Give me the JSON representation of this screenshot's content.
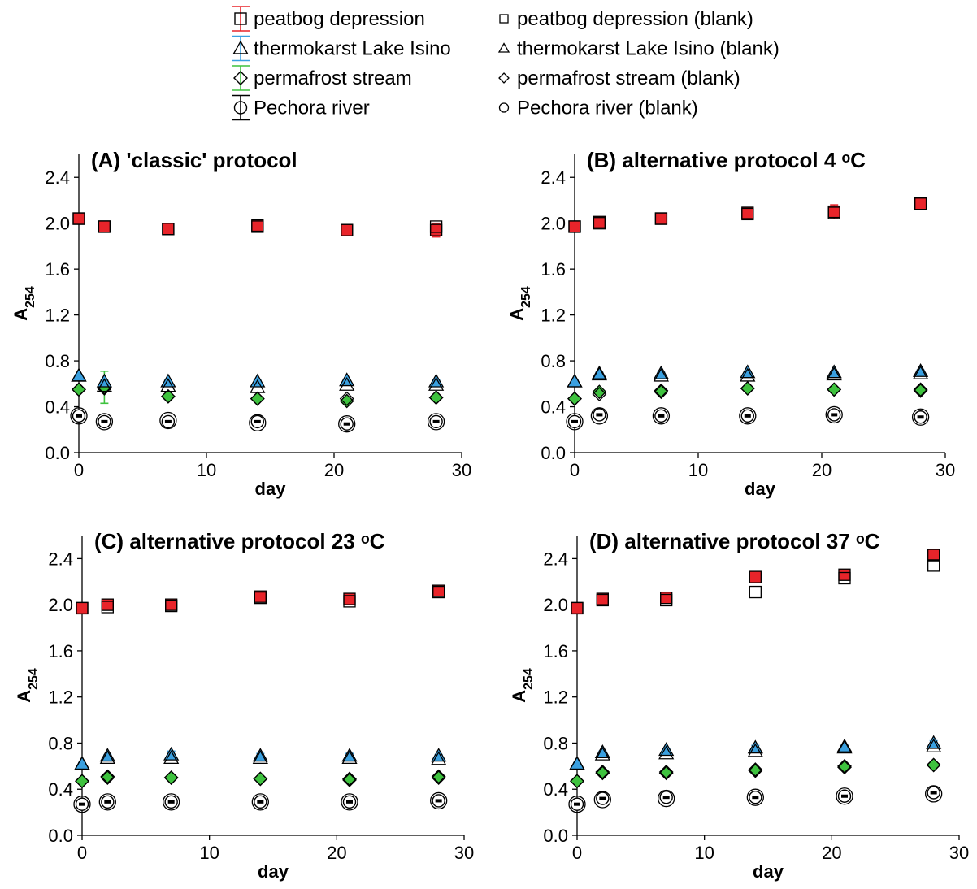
{
  "legend": {
    "items": [
      {
        "key": "peat",
        "label": "peatbog depression",
        "color": "#e8242a",
        "marker": "square"
      },
      {
        "key": "lake",
        "label": "thermokarst Lake Isino",
        "color": "#3aa0e0",
        "marker": "triangle"
      },
      {
        "key": "stream",
        "label": "permafrost stream",
        "color": "#3ec23e",
        "marker": "diamond"
      },
      {
        "key": "river",
        "label": "Pechora river",
        "color": "#000000",
        "marker": "circle"
      }
    ],
    "blank_items": [
      {
        "key": "peat",
        "label": "peatbog depression (blank)",
        "marker": "square"
      },
      {
        "key": "lake",
        "label": "thermokarst Lake Isino (blank)",
        "marker": "triangle"
      },
      {
        "key": "stream",
        "label": "permafrost stream (blank)",
        "marker": "diamond"
      },
      {
        "key": "river",
        "label": "Pechora river (blank)",
        "marker": "circle"
      }
    ]
  },
  "chart_data": [
    {
      "type": "scatter",
      "title": "(A) 'classic' protocol",
      "xlabel": "day",
      "ylabel": "A254",
      "xlim": [
        0,
        30
      ],
      "ylim": [
        0.0,
        2.6
      ],
      "xticks": [
        "0",
        "10",
        "20",
        "30"
      ],
      "yticks": [
        "0.0",
        "0.4",
        "0.8",
        "1.2",
        "1.6",
        "2.0",
        "2.4"
      ],
      "x": [
        0,
        2,
        7,
        14,
        21,
        28
      ],
      "series": [
        {
          "key": "peat",
          "name": "peatbog depression",
          "values": [
            2.04,
            1.97,
            1.95,
            1.98,
            1.94,
            1.94
          ],
          "errors": [
            0.01,
            0.02,
            0.02,
            0.02,
            0.02,
            0.06
          ]
        },
        {
          "key": "lake",
          "name": "thermokarst Lake Isino",
          "values": [
            0.67,
            0.62,
            0.62,
            0.62,
            0.63,
            0.62
          ],
          "errors": [
            0.01,
            0.01,
            0.01,
            0.01,
            0.01,
            0.01
          ]
        },
        {
          "key": "stream",
          "name": "permafrost stream",
          "values": [
            0.55,
            0.57,
            0.49,
            0.47,
            0.45,
            0.48
          ],
          "errors": [
            0.01,
            0.14,
            0.01,
            0.01,
            0.01,
            0.01
          ]
        },
        {
          "key": "river",
          "name": "Pechora river",
          "values": [
            0.32,
            0.27,
            0.27,
            0.27,
            0.25,
            0.27
          ],
          "errors": [
            0.01,
            0.01,
            0.01,
            0.01,
            0.01,
            0.01
          ]
        }
      ],
      "blank_series": [
        {
          "key": "peat",
          "name": "peatbog depression (blank)",
          "values": [
            2.04,
            1.97,
            1.95,
            1.97,
            1.94,
            1.97
          ]
        },
        {
          "key": "lake",
          "name": "thermokarst Lake Isino (blank)",
          "values": [
            0.67,
            0.58,
            0.58,
            0.57,
            0.59,
            0.59
          ]
        },
        {
          "key": "stream",
          "name": "permafrost stream (blank)",
          "values": [
            0.55,
            0.56,
            0.49,
            0.47,
            0.47,
            0.48
          ]
        },
        {
          "key": "river",
          "name": "Pechora river (blank)",
          "values": [
            0.32,
            0.27,
            0.28,
            0.26,
            0.25,
            0.27
          ]
        }
      ]
    },
    {
      "type": "scatter",
      "title": "(B) alternative protocol 4 ᵒC",
      "xlabel": "day",
      "ylabel": "A254",
      "xlim": [
        0,
        30
      ],
      "ylim": [
        0.0,
        2.6
      ],
      "xticks": [
        "0",
        "10",
        "20",
        "30"
      ],
      "yticks": [
        "0.0",
        "0.4",
        "0.8",
        "1.2",
        "1.6",
        "2.0",
        "2.4"
      ],
      "x": [
        0,
        2,
        7,
        14,
        21,
        28
      ],
      "series": [
        {
          "key": "peat",
          "name": "peatbog depression",
          "values": [
            1.97,
            2.01,
            2.04,
            2.09,
            2.1,
            2.17
          ],
          "errors": [
            0.01,
            0.03,
            0.02,
            0.02,
            0.06,
            0.03
          ]
        },
        {
          "key": "lake",
          "name": "thermokarst Lake Isino",
          "values": [
            0.62,
            0.69,
            0.69,
            0.7,
            0.7,
            0.71
          ],
          "errors": [
            0.01,
            0.01,
            0.01,
            0.01,
            0.01,
            0.01
          ]
        },
        {
          "key": "stream",
          "name": "permafrost stream",
          "values": [
            0.47,
            0.53,
            0.54,
            0.56,
            0.55,
            0.55
          ],
          "errors": [
            0.01,
            0.01,
            0.01,
            0.01,
            0.01,
            0.01
          ]
        },
        {
          "key": "river",
          "name": "Pechora river",
          "values": [
            0.27,
            0.33,
            0.32,
            0.32,
            0.33,
            0.31
          ],
          "errors": [
            0.01,
            0.01,
            0.01,
            0.01,
            0.01,
            0.01
          ]
        }
      ],
      "blank_series": [
        {
          "key": "peat",
          "name": "peatbog depression (blank)",
          "values": [
            1.97,
            2.0,
            2.04,
            2.08,
            2.09,
            2.17
          ]
        },
        {
          "key": "lake",
          "name": "thermokarst Lake Isino (blank)",
          "values": [
            0.62,
            0.68,
            0.67,
            0.67,
            0.68,
            0.69
          ]
        },
        {
          "key": "stream",
          "name": "permafrost stream (blank)",
          "values": [
            0.47,
            0.51,
            0.53,
            0.56,
            0.55,
            0.54
          ]
        },
        {
          "key": "river",
          "name": "Pechora river (blank)",
          "values": [
            0.27,
            0.32,
            0.32,
            0.32,
            0.33,
            0.31
          ]
        }
      ]
    },
    {
      "type": "scatter",
      "title": "(C) alternative protocol 23 ᵒC",
      "xlabel": "day",
      "ylabel": "A254",
      "xlim": [
        0,
        30
      ],
      "ylim": [
        0.0,
        2.6
      ],
      "xticks": [
        "0",
        "10",
        "20",
        "30"
      ],
      "yticks": [
        "0.0",
        "0.4",
        "0.8",
        "1.2",
        "1.6",
        "2.0",
        "2.4"
      ],
      "x": [
        0,
        2,
        7,
        14,
        21,
        28
      ],
      "series": [
        {
          "key": "peat",
          "name": "peatbog depression",
          "values": [
            1.97,
            2.0,
            2.0,
            2.07,
            2.05,
            2.12
          ],
          "errors": [
            0.01,
            0.03,
            0.04,
            0.02,
            0.03,
            0.03
          ]
        },
        {
          "key": "lake",
          "name": "thermokarst Lake Isino",
          "values": [
            0.62,
            0.69,
            0.7,
            0.69,
            0.69,
            0.69
          ],
          "errors": [
            0.01,
            0.01,
            0.03,
            0.02,
            0.02,
            0.01
          ]
        },
        {
          "key": "stream",
          "name": "permafrost stream",
          "values": [
            0.47,
            0.51,
            0.5,
            0.49,
            0.49,
            0.51
          ],
          "errors": [
            0.01,
            0.01,
            0.01,
            0.01,
            0.01,
            0.01
          ]
        },
        {
          "key": "river",
          "name": "Pechora river",
          "values": [
            0.27,
            0.29,
            0.29,
            0.29,
            0.29,
            0.3
          ],
          "errors": [
            0.01,
            0.01,
            0.01,
            0.01,
            0.01,
            0.01
          ]
        }
      ],
      "blank_series": [
        {
          "key": "peat",
          "name": "peatbog depression (blank)",
          "values": [
            1.97,
            1.98,
            1.99,
            2.06,
            2.03,
            2.11
          ]
        },
        {
          "key": "lake",
          "name": "thermokarst Lake Isino (blank)",
          "values": [
            0.62,
            0.67,
            0.67,
            0.67,
            0.67,
            0.66
          ]
        },
        {
          "key": "stream",
          "name": "permafrost stream (blank)",
          "values": [
            0.47,
            0.5,
            0.5,
            0.49,
            0.48,
            0.5
          ]
        },
        {
          "key": "river",
          "name": "Pechora river (blank)",
          "values": [
            0.27,
            0.29,
            0.29,
            0.29,
            0.29,
            0.3
          ]
        }
      ]
    },
    {
      "type": "scatter",
      "title": "(D) alternative protocol 37 ᵒC",
      "xlabel": "day",
      "ylabel": "A254",
      "xlim": [
        0,
        30
      ],
      "ylim": [
        0.0,
        2.6
      ],
      "xticks": [
        "0",
        "10",
        "20",
        "30"
      ],
      "yticks": [
        "0.0",
        "0.4",
        "0.8",
        "1.2",
        "1.6",
        "2.0",
        "2.4"
      ],
      "x": [
        0,
        2,
        7,
        14,
        21,
        28
      ],
      "series": [
        {
          "key": "peat",
          "name": "peatbog depression",
          "values": [
            1.97,
            2.05,
            2.06,
            2.24,
            2.26,
            2.43
          ],
          "errors": [
            0.01,
            0.02,
            0.02,
            0.03,
            0.02,
            0.03
          ]
        },
        {
          "key": "lake",
          "name": "thermokarst Lake Isino",
          "values": [
            0.62,
            0.72,
            0.74,
            0.76,
            0.77,
            0.8
          ],
          "errors": [
            0.01,
            0.01,
            0.01,
            0.02,
            0.01,
            0.02
          ]
        },
        {
          "key": "stream",
          "name": "permafrost stream",
          "values": [
            0.47,
            0.55,
            0.55,
            0.57,
            0.6,
            0.61
          ],
          "errors": [
            0.01,
            0.01,
            0.01,
            0.01,
            0.01,
            0.01
          ]
        },
        {
          "key": "river",
          "name": "Pechora river",
          "values": [
            0.27,
            0.32,
            0.33,
            0.33,
            0.34,
            0.37
          ],
          "errors": [
            0.01,
            0.01,
            0.01,
            0.01,
            0.01,
            0.01
          ]
        }
      ],
      "blank_series": [
        {
          "key": "peat",
          "name": "peatbog depression (blank)",
          "values": [
            1.97,
            2.04,
            2.04,
            2.11,
            2.23,
            2.34
          ]
        },
        {
          "key": "lake",
          "name": "thermokarst Lake Isino (blank)",
          "values": [
            0.62,
            0.7,
            0.71,
            0.73,
            0.76,
            0.77
          ]
        },
        {
          "key": "stream",
          "name": "permafrost stream (blank)",
          "values": [
            0.47,
            0.54,
            0.54,
            0.56,
            0.59,
            0.61
          ]
        },
        {
          "key": "river",
          "name": "Pechora river (blank)",
          "values": [
            0.27,
            0.31,
            0.32,
            0.33,
            0.34,
            0.36
          ]
        }
      ]
    }
  ]
}
